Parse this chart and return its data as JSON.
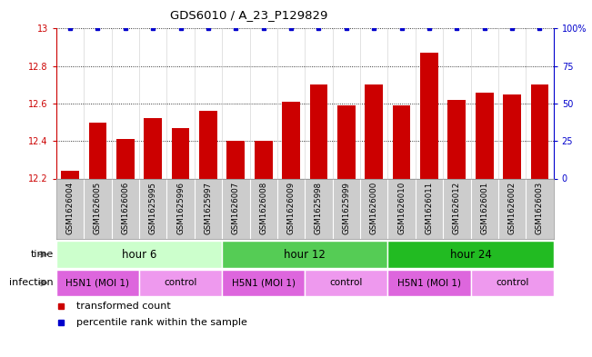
{
  "title": "GDS6010 / A_23_P129829",
  "samples": [
    "GSM1626004",
    "GSM1626005",
    "GSM1626006",
    "GSM1625995",
    "GSM1625996",
    "GSM1625997",
    "GSM1626007",
    "GSM1626008",
    "GSM1626009",
    "GSM1625998",
    "GSM1625999",
    "GSM1626000",
    "GSM1626010",
    "GSM1626011",
    "GSM1626012",
    "GSM1626001",
    "GSM1626002",
    "GSM1626003"
  ],
  "bar_values": [
    12.24,
    12.5,
    12.41,
    12.52,
    12.47,
    12.56,
    12.4,
    12.4,
    12.61,
    12.7,
    12.59,
    12.7,
    12.59,
    12.87,
    12.62,
    12.66,
    12.65,
    12.7
  ],
  "percentile_values": [
    100,
    100,
    100,
    100,
    100,
    100,
    100,
    100,
    100,
    100,
    100,
    100,
    100,
    100,
    100,
    100,
    100,
    100
  ],
  "bar_color": "#cc0000",
  "dot_color": "#0000cc",
  "ylim_left": [
    12.2,
    13.0
  ],
  "ylim_right": [
    0,
    100
  ],
  "yticks_left": [
    12.2,
    12.4,
    12.6,
    12.8,
    13.0
  ],
  "ytick_labels_left": [
    "12.2",
    "12.4",
    "12.6",
    "12.8",
    "13"
  ],
  "yticks_right": [
    0,
    25,
    50,
    75,
    100
  ],
  "ytick_labels_right": [
    "0",
    "25",
    "50",
    "75",
    "100%"
  ],
  "time_groups": [
    {
      "label": "hour 6",
      "start": 0,
      "end": 6,
      "color": "#ccffcc"
    },
    {
      "label": "hour 12",
      "start": 6,
      "end": 12,
      "color": "#55cc55"
    },
    {
      "label": "hour 24",
      "start": 12,
      "end": 18,
      "color": "#22bb22"
    }
  ],
  "infection_groups": [
    {
      "label": "H5N1 (MOI 1)",
      "start": 0,
      "end": 3,
      "color": "#dd66dd"
    },
    {
      "label": "control",
      "start": 3,
      "end": 6,
      "color": "#ee99ee"
    },
    {
      "label": "H5N1 (MOI 1)",
      "start": 6,
      "end": 9,
      "color": "#dd66dd"
    },
    {
      "label": "control",
      "start": 9,
      "end": 12,
      "color": "#ee99ee"
    },
    {
      "label": "H5N1 (MOI 1)",
      "start": 12,
      "end": 15,
      "color": "#dd66dd"
    },
    {
      "label": "control",
      "start": 15,
      "end": 18,
      "color": "#ee99ee"
    }
  ],
  "axis_color_left": "#cc0000",
  "axis_color_right": "#0000cc",
  "sample_bg_color": "#cccccc",
  "sample_border_color": "#ffffff"
}
